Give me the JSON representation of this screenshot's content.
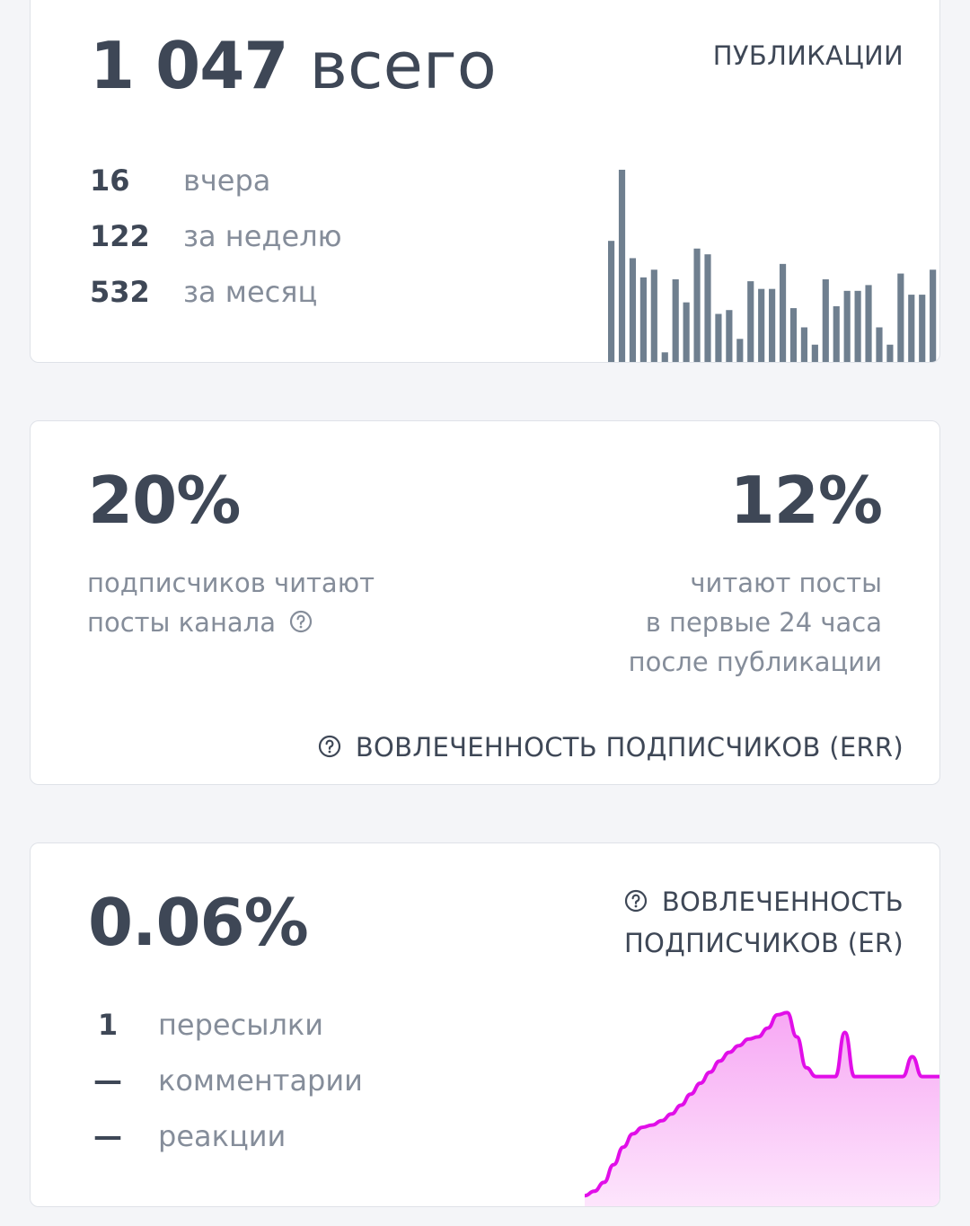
{
  "publications": {
    "total_value": "1 047",
    "total_unit": "всего",
    "title": "ПУБЛИКАЦИИ",
    "stats": [
      {
        "value": "16",
        "label": "вчера"
      },
      {
        "value": "122",
        "label": "за неделю"
      },
      {
        "value": "532",
        "label": "за месяц"
      }
    ]
  },
  "err": {
    "left_value": "20%",
    "left_line1": "подписчиков читают",
    "left_line2": "посты канала",
    "right_value": "12%",
    "right_lines": [
      "читают посты",
      "в первые 24 часа",
      "после публикации"
    ],
    "footer": "ВОВЛЕЧЕННОСТЬ ПОДПИСЧИКОВ (ERR)"
  },
  "er": {
    "value": "0.06%",
    "title_line1": "ВОВЛЕЧЕННОСТЬ",
    "title_line2": "ПОДПИСЧИКОВ (ER)",
    "stats": [
      {
        "value": "1",
        "label": "пересылки"
      },
      {
        "value": "—",
        "label": "комментарии"
      },
      {
        "value": "—",
        "label": "реакции"
      }
    ]
  },
  "chart_data": [
    {
      "type": "bar",
      "values": [
        0.63,
        1.0,
        0.54,
        0.44,
        0.48,
        0.05,
        0.43,
        0.31,
        0.59,
        0.56,
        0.25,
        0.27,
        0.12,
        0.42,
        0.38,
        0.38,
        0.51,
        0.28,
        0.18,
        0.09,
        0.43,
        0.29,
        0.37,
        0.37,
        0.4,
        0.18,
        0.09,
        0.46,
        0.35,
        0.35,
        0.48
      ],
      "color": "#6f7f8f"
    },
    {
      "type": "area",
      "values": [
        0.04,
        0.06,
        0.1,
        0.18,
        0.26,
        0.32,
        0.35,
        0.36,
        0.38,
        0.41,
        0.45,
        0.5,
        0.55,
        0.6,
        0.65,
        0.69,
        0.72,
        0.75,
        0.76,
        0.8,
        0.86,
        0.87,
        0.76,
        0.62,
        0.58,
        0.58,
        0.58,
        0.78,
        0.58,
        0.58,
        0.58,
        0.58,
        0.58,
        0.58,
        0.67,
        0.58,
        0.58,
        0.58
      ],
      "line_color": "#e10ee8",
      "fill_color": "#f9b6f6"
    }
  ]
}
